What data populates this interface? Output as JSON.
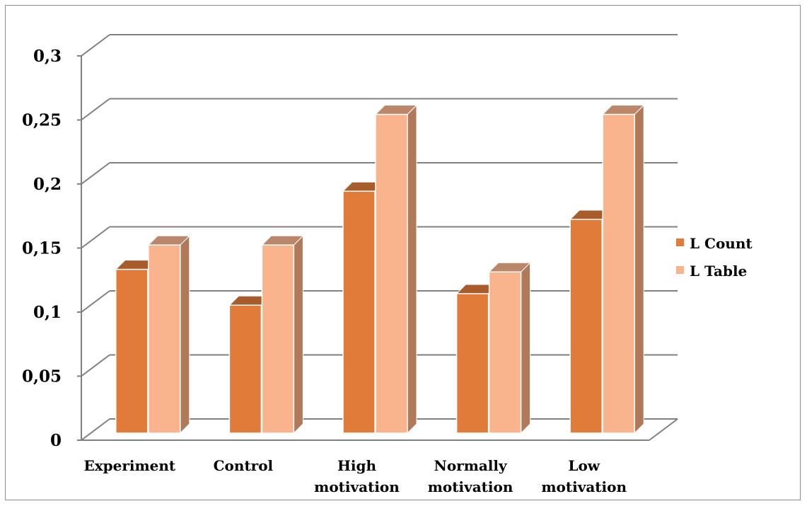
{
  "chart_data": {
    "type": "bar",
    "categories": [
      [
        "Experiment"
      ],
      [
        "Control"
      ],
      [
        "High",
        "motivation"
      ],
      [
        "Normally",
        "motivation"
      ],
      [
        "Low",
        "motivation"
      ]
    ],
    "series": [
      {
        "name": "L Count",
        "values": [
          0.14,
          0.112,
          0.201,
          0.121,
          0.179
        ],
        "color": "#e07b39"
      },
      {
        "name": "L Table",
        "values": [
          0.159,
          0.159,
          0.261,
          0.138,
          0.261
        ],
        "color": "#f9b48e"
      }
    ],
    "yticks": [
      "0",
      "0,05",
      "0,1",
      "0,15",
      "0,2",
      "0,25",
      "0,3"
    ],
    "ylim": [
      0,
      0.3
    ],
    "grid": true,
    "legend_position": "right",
    "style": "3d-clustered-column"
  }
}
